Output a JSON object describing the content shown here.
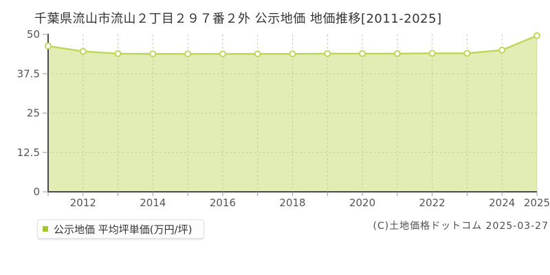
{
  "title": "千葉県流山市流山２丁目２９７番２外 公示地価 地価推移[2011-2025]",
  "legend": {
    "label": "公示地価 平均坪単価(万円/坪)"
  },
  "footer": {
    "copyright": "(C)土地価格ドットコム 2025-03-27"
  },
  "colors": {
    "series_line": "#bcd75a",
    "series_fill": "#bcd75a",
    "series_fill_opacity": "0.45",
    "legend_marker": "#a3c62c",
    "point_fill": "#ffffff",
    "axis": "#4a4a4a",
    "tick": "#999999",
    "grid": "#c9c9c9",
    "plot_right_border": "#d8d8d8",
    "tick_text": "#555555"
  },
  "chart_data": {
    "type": "area",
    "title": "千葉県流山市流山２丁目２９７番２外 公示地価 地価推移[2011-2025]",
    "xlabel": "",
    "ylabel": "",
    "x": [
      2011,
      2012,
      2013,
      2014,
      2015,
      2016,
      2017,
      2018,
      2019,
      2020,
      2021,
      2022,
      2023,
      2024,
      2025
    ],
    "values": [
      46.3,
      44.6,
      43.9,
      43.8,
      43.8,
      43.8,
      43.8,
      43.8,
      43.9,
      43.9,
      43.9,
      44.0,
      44.0,
      45.0,
      49.6
    ],
    "series_name": "公示地価 平均坪単価(万円/坪)",
    "ylim": [
      0,
      50
    ],
    "yticks": [
      0,
      12.5,
      25,
      37.5,
      50
    ],
    "ytick_labels": [
      "0",
      "12.5",
      "25",
      "37.5",
      "50"
    ],
    "xticks": [
      2012,
      2014,
      2016,
      2018,
      2020,
      2022,
      2024,
      2025
    ],
    "grid": true,
    "grid_style": "dashed",
    "legend_position": "bottom-left",
    "points": "white circles with green outline"
  }
}
